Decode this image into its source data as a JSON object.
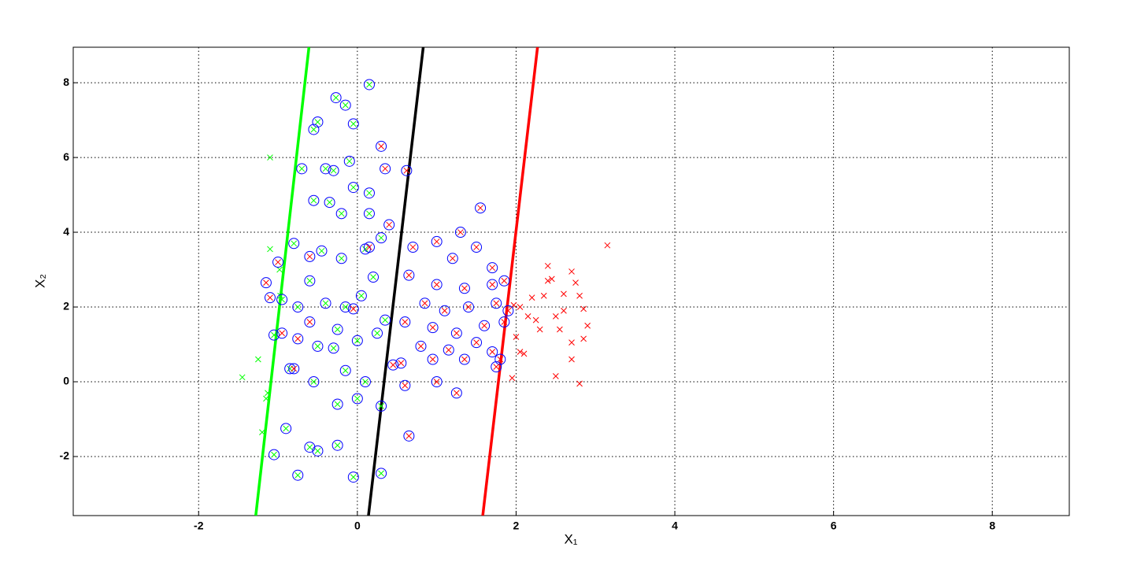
{
  "chart_data": {
    "type": "scatter",
    "xlabel": "X₁",
    "ylabel": "X₂",
    "xlim": [
      -3.58,
      8.97
    ],
    "ylim": [
      -3.58,
      8.95
    ],
    "xticks": [
      -2,
      0,
      2,
      4,
      6,
      8
    ],
    "yticks": [
      -2,
      0,
      2,
      4,
      6,
      8
    ],
    "grid": true,
    "lines": [
      {
        "color": "#00ff00",
        "x": [
          -1.28,
          -0.61
        ],
        "values": [
          -3.58,
          8.95
        ]
      },
      {
        "color": "#000000",
        "x": [
          0.14,
          0.83
        ],
        "values": [
          -3.58,
          8.95
        ]
      },
      {
        "color": "#ff0000",
        "x": [
          1.58,
          2.27
        ],
        "values": [
          -3.58,
          8.95
        ]
      }
    ],
    "series": [
      {
        "color": "#00ff00",
        "circled": false,
        "x": [
          -1.1,
          -1.1,
          -0.98,
          -0.97,
          -1.45,
          -1.25,
          -1.13,
          -1.15,
          -1.2
        ],
        "values": [
          6.0,
          3.55,
          3.0,
          2.3,
          0.12,
          0.6,
          -0.3,
          -0.45,
          -1.35
        ]
      },
      {
        "color": "#ff0000",
        "circled": false,
        "x": [
          1.97,
          2.05,
          2.2,
          2.15,
          2.25,
          2.3,
          2.35,
          2.4,
          2.45,
          2.4,
          2.6,
          2.7,
          2.75,
          2.8,
          2.85,
          2.9,
          2.6,
          2.5,
          2.55,
          2.7,
          2.85,
          2.5,
          2.8,
          2.7,
          2.05,
          2.1,
          1.95,
          2.0,
          3.15
        ],
        "values": [
          2.05,
          2.0,
          2.25,
          1.75,
          1.65,
          1.4,
          2.3,
          2.7,
          2.75,
          3.1,
          2.35,
          2.95,
          2.65,
          2.3,
          1.95,
          1.5,
          1.9,
          1.75,
          1.4,
          1.05,
          1.15,
          0.15,
          -0.05,
          0.6,
          0.8,
          0.75,
          0.1,
          1.2,
          3.65
        ]
      },
      {
        "color": "#00ff00",
        "circled": true,
        "circle_color": "#0000ff",
        "x": [
          0.15,
          -0.27,
          -0.15,
          -0.5,
          -0.55,
          -0.05,
          -0.7,
          -0.4,
          -0.3,
          -0.1,
          -0.55,
          -0.05,
          0.15,
          -0.35,
          -0.2,
          0.15,
          -0.8,
          -0.45,
          -0.2,
          0.1,
          -0.95,
          -0.75,
          -0.4,
          -0.15,
          0.05,
          -1.05,
          -0.5,
          -0.25,
          0.0,
          0.25,
          -0.85,
          -0.55,
          -0.15,
          0.1,
          -0.25,
          0.0,
          0.3,
          -0.9,
          -0.6,
          -0.25,
          -1.05,
          -0.5,
          -0.75,
          -0.05,
          0.3,
          0.35,
          0.2,
          0.3,
          -0.6,
          -0.3
        ],
        "values": [
          7.95,
          7.6,
          7.4,
          6.95,
          6.75,
          6.9,
          5.7,
          5.7,
          5.65,
          5.9,
          4.85,
          5.2,
          5.05,
          4.8,
          4.5,
          4.5,
          3.7,
          3.5,
          3.3,
          3.55,
          2.2,
          2.0,
          2.1,
          2.0,
          2.3,
          1.25,
          0.95,
          1.4,
          1.1,
          1.3,
          0.35,
          0.0,
          0.3,
          0.0,
          -0.6,
          -0.45,
          -0.65,
          -1.25,
          -1.75,
          -1.7,
          -1.95,
          -1.85,
          -2.5,
          -2.55,
          -2.45,
          1.65,
          2.8,
          3.85,
          2.7,
          0.9
        ]
      },
      {
        "color": "#ff0000",
        "circled": true,
        "circle_color": "#0000ff",
        "x": [
          1.55,
          0.62,
          0.3,
          0.35,
          1.3,
          1.0,
          0.4,
          0.7,
          1.5,
          1.2,
          1.7,
          0.65,
          1.0,
          1.35,
          1.7,
          1.85,
          0.85,
          1.1,
          1.4,
          1.75,
          1.9,
          0.6,
          0.95,
          1.25,
          1.6,
          1.85,
          0.8,
          1.15,
          1.5,
          1.7,
          1.8,
          0.55,
          0.95,
          1.35,
          1.75,
          0.6,
          1.0,
          1.25,
          0.65,
          0.45,
          -0.6,
          -1.0,
          -0.6,
          -0.75,
          -0.95,
          -0.8,
          -1.1,
          -1.15,
          -0.05,
          0.15
        ],
        "values": [
          4.65,
          5.65,
          6.3,
          5.7,
          4.0,
          3.75,
          4.2,
          3.6,
          3.6,
          3.3,
          3.05,
          2.85,
          2.6,
          2.5,
          2.6,
          2.7,
          2.1,
          1.9,
          2.0,
          2.1,
          1.9,
          1.6,
          1.45,
          1.3,
          1.5,
          1.6,
          0.95,
          0.85,
          1.05,
          0.8,
          0.6,
          0.5,
          0.6,
          0.6,
          0.4,
          -0.1,
          0.0,
          -0.3,
          -1.45,
          0.45,
          3.35,
          3.2,
          1.6,
          1.15,
          1.3,
          0.35,
          2.25,
          2.65,
          1.95,
          3.6
        ]
      }
    ]
  }
}
